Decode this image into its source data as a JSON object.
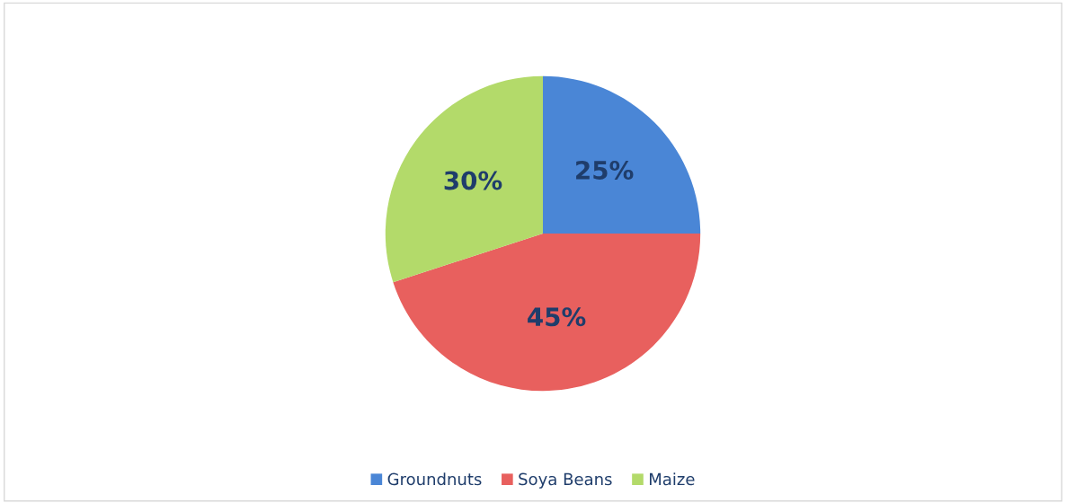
{
  "chart_data": {
    "type": "pie",
    "categories": [
      "Groundnuts",
      "Soya Beans",
      "Maize"
    ],
    "values": [
      25,
      45,
      30
    ],
    "colors": [
      "#4a86d6",
      "#e8605e",
      "#b3da6a"
    ],
    "value_labels": [
      "25%",
      "45%",
      "30%"
    ],
    "legend": "bottom"
  }
}
